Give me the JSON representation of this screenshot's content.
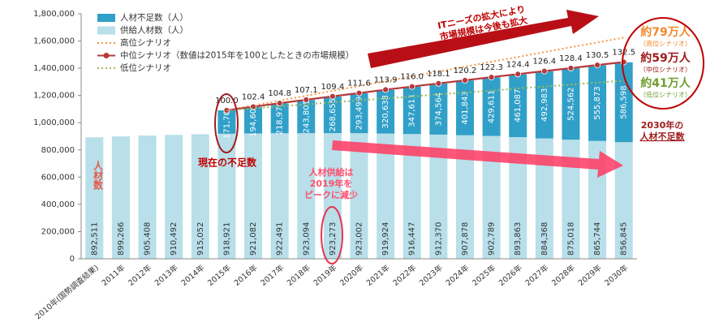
{
  "chart_data": {
    "type": "bar",
    "categories": [
      "2010年(国勢調査結果)",
      "2011年",
      "2012年",
      "2013年",
      "2014年",
      "2015年",
      "2016年",
      "2017年",
      "2018年",
      "2019年",
      "2020年",
      "2021年",
      "2022年",
      "2023年",
      "2024年",
      "2025年",
      "2026年",
      "2027年",
      "2028年",
      "2029年",
      "2030年"
    ],
    "ylabel": "人材数",
    "ylim": [
      0,
      1800000
    ],
    "yticks": [
      {
        "value": 0,
        "label": "0"
      },
      {
        "value": 200000,
        "label": "200,000"
      },
      {
        "value": 400000,
        "label": "400,000"
      },
      {
        "value": 600000,
        "label": "600,000"
      },
      {
        "value": 800000,
        "label": "800,000"
      },
      {
        "value": 1000000,
        "label": "1,000,000"
      },
      {
        "value": 1200000,
        "label": "1,200,000"
      },
      {
        "value": 1400000,
        "label": "1,400,000"
      },
      {
        "value": 1600000,
        "label": "1,600,000"
      },
      {
        "value": 1800000,
        "label": "1,800,000"
      }
    ],
    "y2lim": [
      0,
      165
    ],
    "legend": "top-left",
    "series": [
      {
        "name": "人材不足数（人）",
        "type": "bar",
        "color": "#31a0c8",
        "values": [
          null,
          null,
          null,
          null,
          null,
          171700,
          194608,
          218976,
          243805,
          268655,
          293499,
          320638,
          347611,
          374564,
          401843,
          429611,
          461087,
          492983,
          524562,
          555873,
          586598
        ],
        "value_labels": [
          null,
          null,
          null,
          null,
          null,
          "171,700",
          "194,608",
          "218,976",
          "243,805",
          "268,655",
          "293,499",
          "320,638",
          "347,611",
          "374,564",
          "401,843",
          "429,611",
          "461,087",
          "492,983",
          "524,562",
          "555,873",
          "586,598"
        ]
      },
      {
        "name": "供給人材数（人）",
        "type": "bar",
        "color": "#b8dfea",
        "values": [
          892511,
          899266,
          905408,
          910492,
          915052,
          918921,
          921082,
          922491,
          923094,
          923273,
          923002,
          919924,
          916447,
          912370,
          907878,
          902789,
          893863,
          884368,
          875018,
          865744,
          856845
        ],
        "value_labels": [
          "892,511",
          "899,266",
          "905,408",
          "910,492",
          "915,052",
          "918,921",
          "921,082",
          "922,491",
          "923,094",
          "923,273",
          "923,002",
          "919,924",
          "916,447",
          "912,370",
          "907,878",
          "902,789",
          "893,863",
          "884,368",
          "875,018",
          "865,744",
          "856,845"
        ]
      },
      {
        "name": "高位シナリオ",
        "type": "line",
        "axis": "y2",
        "color": "#f79646",
        "dashed": true,
        "values": [
          null,
          null,
          null,
          null,
          null,
          100,
          103.3,
          106.5,
          109.8,
          113.1,
          116.3,
          119.6,
          122.9,
          126.1,
          129.4,
          132.7,
          135.9,
          139.2,
          142.5,
          145.7,
          149
        ]
      },
      {
        "name": "中位シナリオ（数値は2015年を100としたときの市場規模）",
        "type": "line",
        "axis": "y2",
        "color": "#b5393b",
        "markers": true,
        "values": [
          null,
          null,
          null,
          null,
          null,
          100,
          102.4,
          104.8,
          107.1,
          109.4,
          111.6,
          113.9,
          116,
          118.1,
          120.2,
          122.3,
          124.4,
          126.4,
          128.4,
          130.5,
          132.5
        ],
        "value_labels": [
          null,
          null,
          null,
          null,
          null,
          "100.0",
          "102.4",
          "104.8",
          "107.1",
          "109.4",
          "111.6",
          "113.9",
          "116.0",
          "118.1",
          "120.2",
          "122.3",
          "124.4",
          "126.4",
          "128.4",
          "130.5",
          "132.5"
        ]
      },
      {
        "name": "低位シナリオ",
        "type": "line",
        "axis": "y2",
        "color": "#9bbb59",
        "dashed": true,
        "values": [
          null,
          null,
          null,
          null,
          null,
          100,
          101.3,
          102.7,
          104,
          105.3,
          106.7,
          108,
          109.3,
          110.7,
          112,
          113.3,
          114.7,
          116,
          117.3,
          118.7,
          120
        ]
      }
    ],
    "annotations": {
      "it_needs": [
        "ITニーズの拡大により",
        "市場規模は今後も拡大"
      ],
      "current_shortage": "現在の不足数",
      "supply_peak": [
        "人材供給は",
        "2019年を",
        "ピークに減少"
      ],
      "high_2030": "約79万人",
      "high_note": "（高位シナリオ）",
      "mid_2030": "約59万人",
      "mid_note": "（中位シナリオ）",
      "low_2030": "約41万人",
      "low_note": "（低位シナリオ）",
      "shortage_2030": [
        "2030年の",
        "人材不足数"
      ]
    }
  }
}
